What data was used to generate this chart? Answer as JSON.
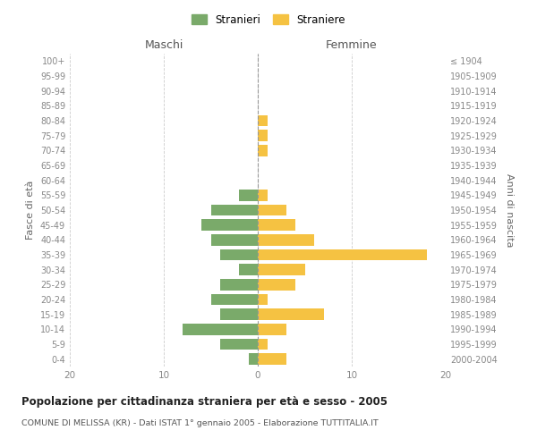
{
  "age_groups": [
    "0-4",
    "5-9",
    "10-14",
    "15-19",
    "20-24",
    "25-29",
    "30-34",
    "35-39",
    "40-44",
    "45-49",
    "50-54",
    "55-59",
    "60-64",
    "65-69",
    "70-74",
    "75-79",
    "80-84",
    "85-89",
    "90-94",
    "95-99",
    "100+"
  ],
  "birth_years": [
    "2000-2004",
    "1995-1999",
    "1990-1994",
    "1985-1989",
    "1980-1984",
    "1975-1979",
    "1970-1974",
    "1965-1969",
    "1960-1964",
    "1955-1959",
    "1950-1954",
    "1945-1949",
    "1940-1944",
    "1935-1939",
    "1930-1934",
    "1925-1929",
    "1920-1924",
    "1915-1919",
    "1910-1914",
    "1905-1909",
    "≤ 1904"
  ],
  "maschi": [
    1,
    4,
    8,
    4,
    5,
    4,
    2,
    4,
    5,
    6,
    5,
    2,
    0,
    0,
    0,
    0,
    0,
    0,
    0,
    0,
    0
  ],
  "femmine": [
    3,
    1,
    3,
    7,
    1,
    4,
    5,
    18,
    6,
    4,
    3,
    1,
    0,
    0,
    1,
    1,
    1,
    0,
    0,
    0,
    0
  ],
  "male_color": "#7aaa6a",
  "female_color": "#f5c242",
  "title": "Popolazione per cittadinanza straniera per età e sesso - 2005",
  "subtitle": "COMUNE DI MELISSA (KR) - Dati ISTAT 1° gennaio 2005 - Elaborazione TUTTITALIA.IT",
  "ylabel_left": "Fasce di età",
  "ylabel_right": "Anni di nascita",
  "xlabel_left": "Maschi",
  "xlabel_right": "Femmine",
  "legend_stranieri": "Stranieri",
  "legend_straniere": "Straniere",
  "xlim": 20,
  "bg_color": "#ffffff",
  "grid_color": "#cccccc",
  "bar_height": 0.75
}
